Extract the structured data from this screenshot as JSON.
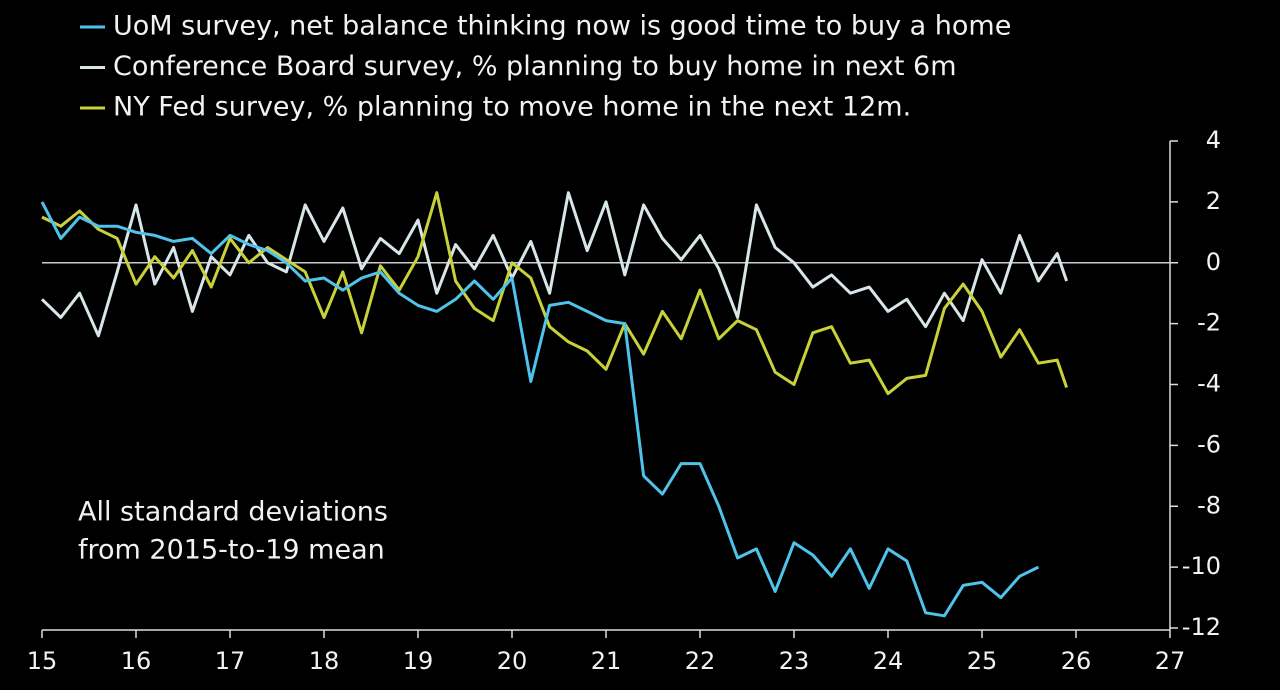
{
  "chart_data": {
    "type": "line",
    "annotation": [
      "All standard deviations",
      "from 2015-to-19 mean"
    ],
    "x": [
      15.0,
      15.2,
      15.4,
      15.6,
      15.8,
      16.0,
      16.2,
      16.4,
      16.6,
      16.8,
      17.0,
      17.2,
      17.4,
      17.6,
      17.8,
      18.0,
      18.2,
      18.4,
      18.6,
      18.8,
      19.0,
      19.2,
      19.4,
      19.6,
      19.8,
      20.0,
      20.2,
      20.4,
      20.6,
      20.8,
      21.0,
      21.2,
      21.4,
      21.6,
      21.8,
      22.0,
      22.2,
      22.4,
      22.6,
      22.8,
      23.0,
      23.2,
      23.4,
      23.6,
      23.8,
      24.0,
      24.2,
      24.4,
      24.6,
      24.8,
      25.0,
      25.2,
      25.4,
      25.6,
      25.8,
      25.9
    ],
    "series": [
      {
        "name": "UoM survey, net balance thinking now is good time to buy a home",
        "color": "#4fc3ea",
        "values": [
          2.0,
          0.8,
          1.5,
          1.2,
          1.2,
          1.0,
          0.9,
          0.7,
          0.8,
          0.3,
          0.9,
          0.6,
          0.4,
          0.0,
          -0.6,
          -0.5,
          -0.9,
          -0.5,
          -0.3,
          -1.0,
          -1.4,
          -1.6,
          -1.2,
          -0.6,
          -1.2,
          -0.5,
          -3.9,
          -1.4,
          -1.3,
          -1.6,
          -1.9,
          -2.0,
          -7.0,
          -7.6,
          -6.6,
          -6.6,
          -8.0,
          -9.7,
          -9.4,
          -10.8,
          -9.2,
          -9.6,
          -10.3,
          -9.4,
          -10.7,
          -9.4,
          -9.8,
          -11.5,
          -11.6,
          -10.6,
          -10.5,
          -11.0,
          -10.3,
          -10.0,
          null,
          null
        ]
      },
      {
        "name": "Conference Board survey, % planning to buy home in next 6m",
        "color": "#d8e6ea",
        "values": [
          -1.2,
          -1.8,
          -1.0,
          -2.4,
          -0.3,
          1.9,
          -0.7,
          0.5,
          -1.6,
          0.2,
          -0.4,
          0.9,
          0.0,
          -0.3,
          1.9,
          0.7,
          1.8,
          -0.2,
          0.8,
          0.3,
          1.4,
          -1.0,
          0.6,
          -0.2,
          0.9,
          -0.5,
          0.7,
          -1.0,
          2.3,
          0.4,
          2.0,
          -0.4,
          1.9,
          0.8,
          0.1,
          0.9,
          -0.2,
          -1.8,
          1.9,
          0.5,
          0.0,
          -0.8,
          -0.4,
          -1.0,
          -0.8,
          -1.6,
          -1.2,
          -2.1,
          -1.0,
          -1.9,
          0.1,
          -1.0,
          0.9,
          -0.6,
          0.3,
          -0.6
        ]
      },
      {
        "name": "NY Fed survey, % planning to move home in the next 12m.",
        "color": "#c9d13a",
        "values": [
          1.5,
          1.2,
          1.7,
          1.1,
          0.8,
          -0.7,
          0.2,
          -0.5,
          0.4,
          -0.8,
          0.8,
          0.0,
          0.5,
          0.1,
          -0.3,
          -1.8,
          -0.3,
          -2.3,
          -0.1,
          -0.9,
          0.2,
          2.3,
          -0.6,
          -1.5,
          -1.9,
          0.0,
          -0.5,
          -2.1,
          -2.6,
          -2.9,
          -3.5,
          -2.0,
          -3.0,
          -1.6,
          -2.5,
          -0.9,
          -2.5,
          -1.9,
          -2.2,
          -3.6,
          -4.0,
          -2.3,
          -2.1,
          -3.3,
          -3.2,
          -4.3,
          -3.8,
          -3.7,
          -1.5,
          -0.7,
          -1.6,
          -3.1,
          -2.2,
          -3.3,
          -3.2,
          -4.1
        ]
      }
    ],
    "xlim": [
      15,
      27
    ],
    "xticks": [
      15,
      16,
      17,
      18,
      19,
      20,
      21,
      22,
      23,
      24,
      25,
      26,
      27
    ],
    "ylim": [
      -12,
      4
    ],
    "yticks": [
      -12,
      -10,
      -8,
      -6,
      -4,
      -2,
      0,
      2,
      4
    ],
    "y_axis_side": "right",
    "zero_line": true
  }
}
